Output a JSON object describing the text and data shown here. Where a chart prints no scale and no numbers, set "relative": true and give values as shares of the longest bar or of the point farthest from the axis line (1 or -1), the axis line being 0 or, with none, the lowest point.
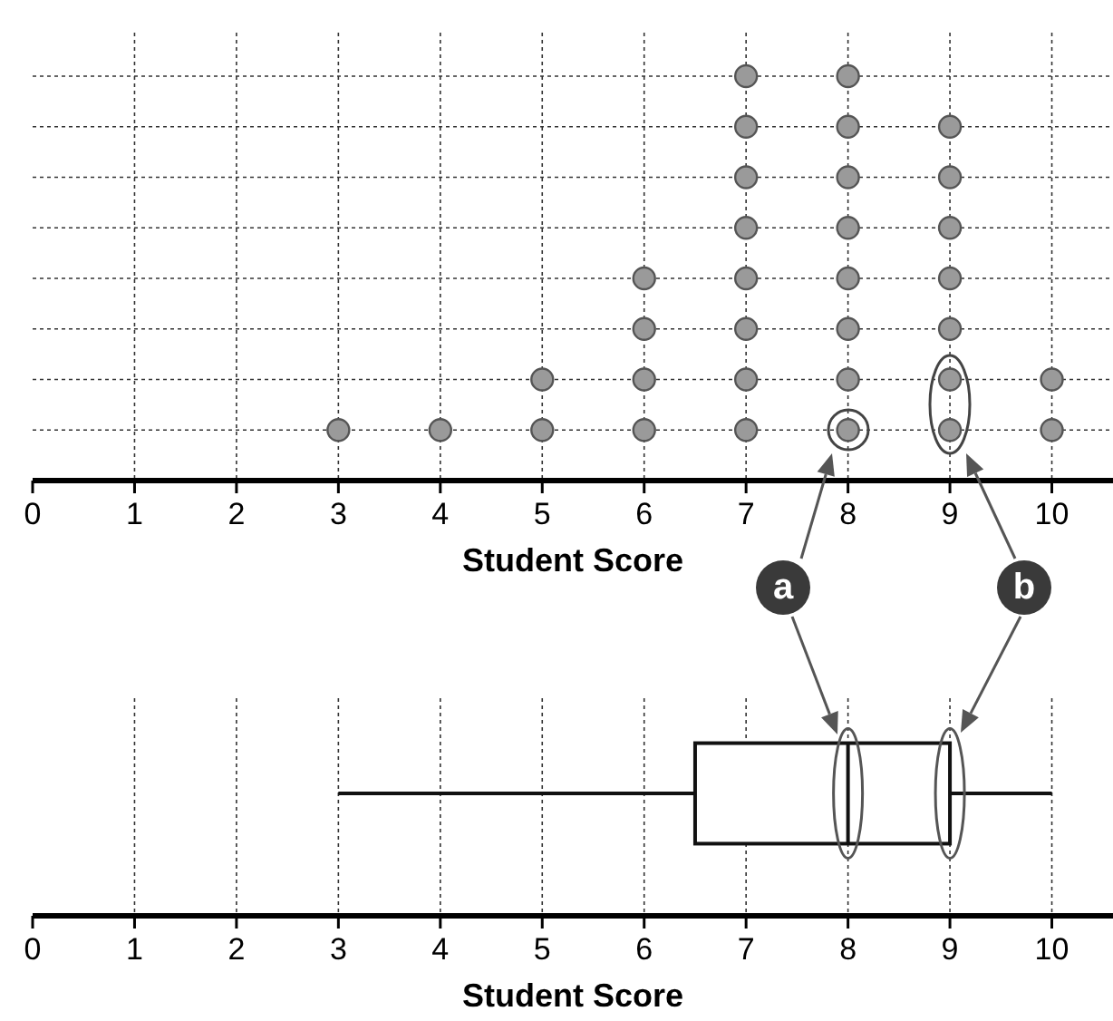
{
  "chart_data": [
    {
      "type": "scatter",
      "xlabel": "Student Score",
      "xlim": [
        0,
        10.6
      ],
      "xticks": [
        0,
        1,
        2,
        3,
        4,
        5,
        6,
        7,
        8,
        9,
        10
      ],
      "relative": true,
      "grid": true,
      "marker": "circle",
      "color": "#9a9a9a",
      "x": [
        3,
        4,
        5,
        5,
        6,
        6,
        6,
        6,
        7,
        7,
        7,
        7,
        7,
        7,
        7,
        7,
        8,
        8,
        8,
        8,
        8,
        8,
        8,
        8,
        9,
        9,
        9,
        9,
        9,
        9,
        9,
        10,
        10
      ],
      "values": [
        0.125,
        0.125,
        0.125,
        0.25,
        0.125,
        0.25,
        0.375,
        0.5,
        0.125,
        0.25,
        0.375,
        0.5,
        0.625,
        0.75,
        0.875,
        1,
        0.125,
        0.25,
        0.375,
        0.5,
        0.625,
        0.75,
        0.875,
        1,
        0.125,
        0.25,
        0.375,
        0.5,
        0.625,
        0.75,
        0.875,
        0.125,
        0.25
      ],
      "annotations": [
        "a",
        "b"
      ]
    },
    {
      "type": "box",
      "orientation": "horizontal",
      "xlabel": "Student Score",
      "xlim": [
        0,
        10.6
      ],
      "xticks": [
        0,
        1,
        2,
        3,
        4,
        5,
        6,
        7,
        8,
        9,
        10
      ],
      "grid": "x",
      "categories": [
        null
      ],
      "boxes": [
        {
          "low": 3,
          "q1": 6.5,
          "median": 8,
          "q3": 9,
          "high": 10
        }
      ]
    }
  ]
}
